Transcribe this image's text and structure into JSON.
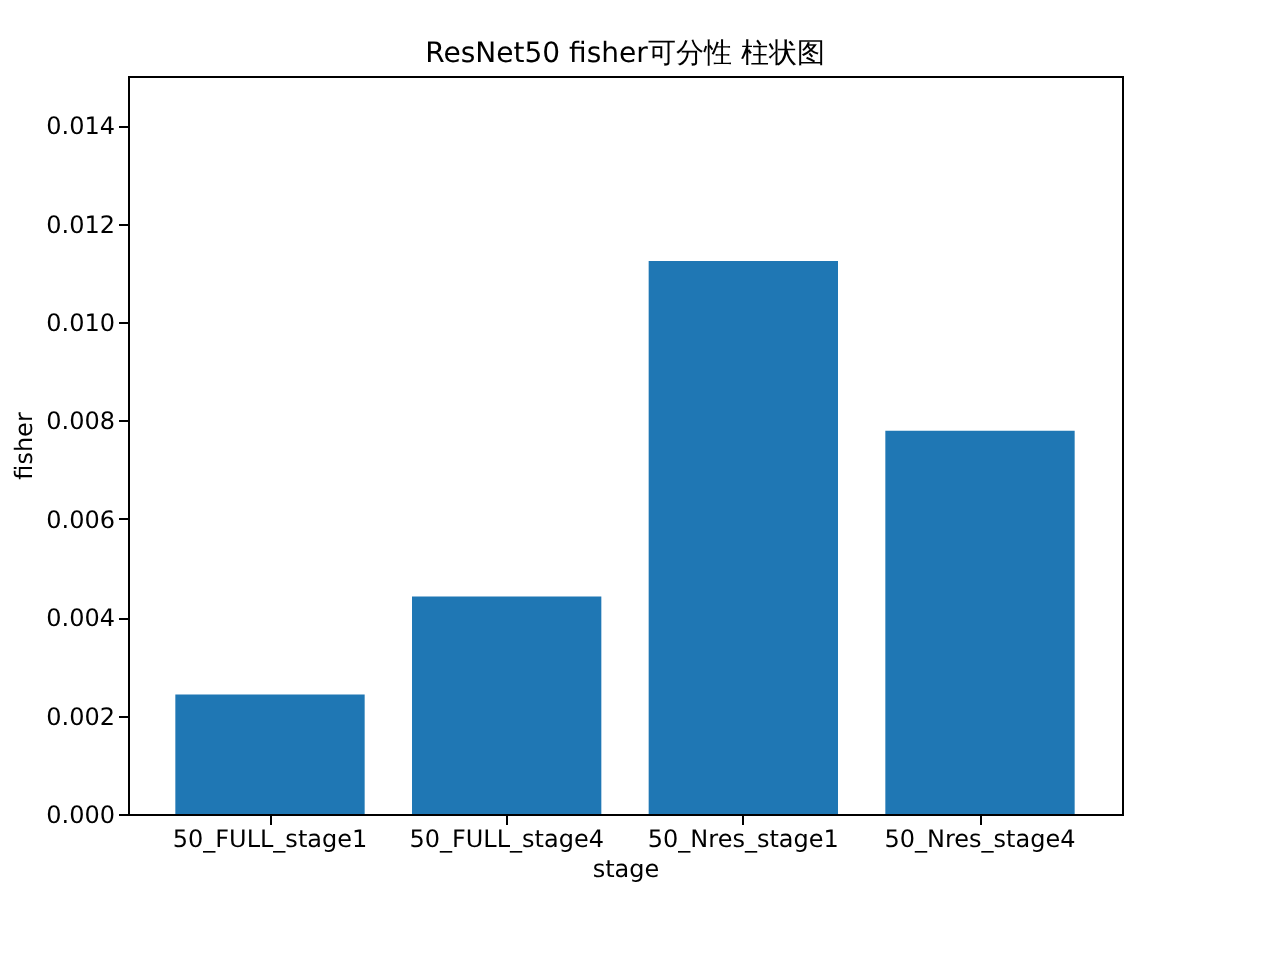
{
  "chart_data": {
    "type": "bar",
    "title": "ResNet50 fisher可分性 柱状图",
    "xlabel": "stage",
    "ylabel": "fisher",
    "categories": [
      "50_FULL_stage1",
      "50_FULL_stage4",
      "50_Nres_stage1",
      "50_Nres_stage4"
    ],
    "values": [
      0.00243,
      0.00442,
      0.01124,
      0.00779
    ],
    "color": "#1f77b4",
    "ylim": [
      0,
      0.015
    ],
    "yticks": [
      {
        "value": 0,
        "label": "0.000"
      },
      {
        "value": 0.002,
        "label": "0.002"
      },
      {
        "value": 0.004,
        "label": "0.004"
      },
      {
        "value": 0.006,
        "label": "0.006"
      },
      {
        "value": 0.008,
        "label": "0.008"
      },
      {
        "value": 0.01,
        "label": "0.010"
      },
      {
        "value": 0.012,
        "label": "0.012"
      },
      {
        "value": 0.014,
        "label": "0.014"
      }
    ],
    "grid": false
  }
}
